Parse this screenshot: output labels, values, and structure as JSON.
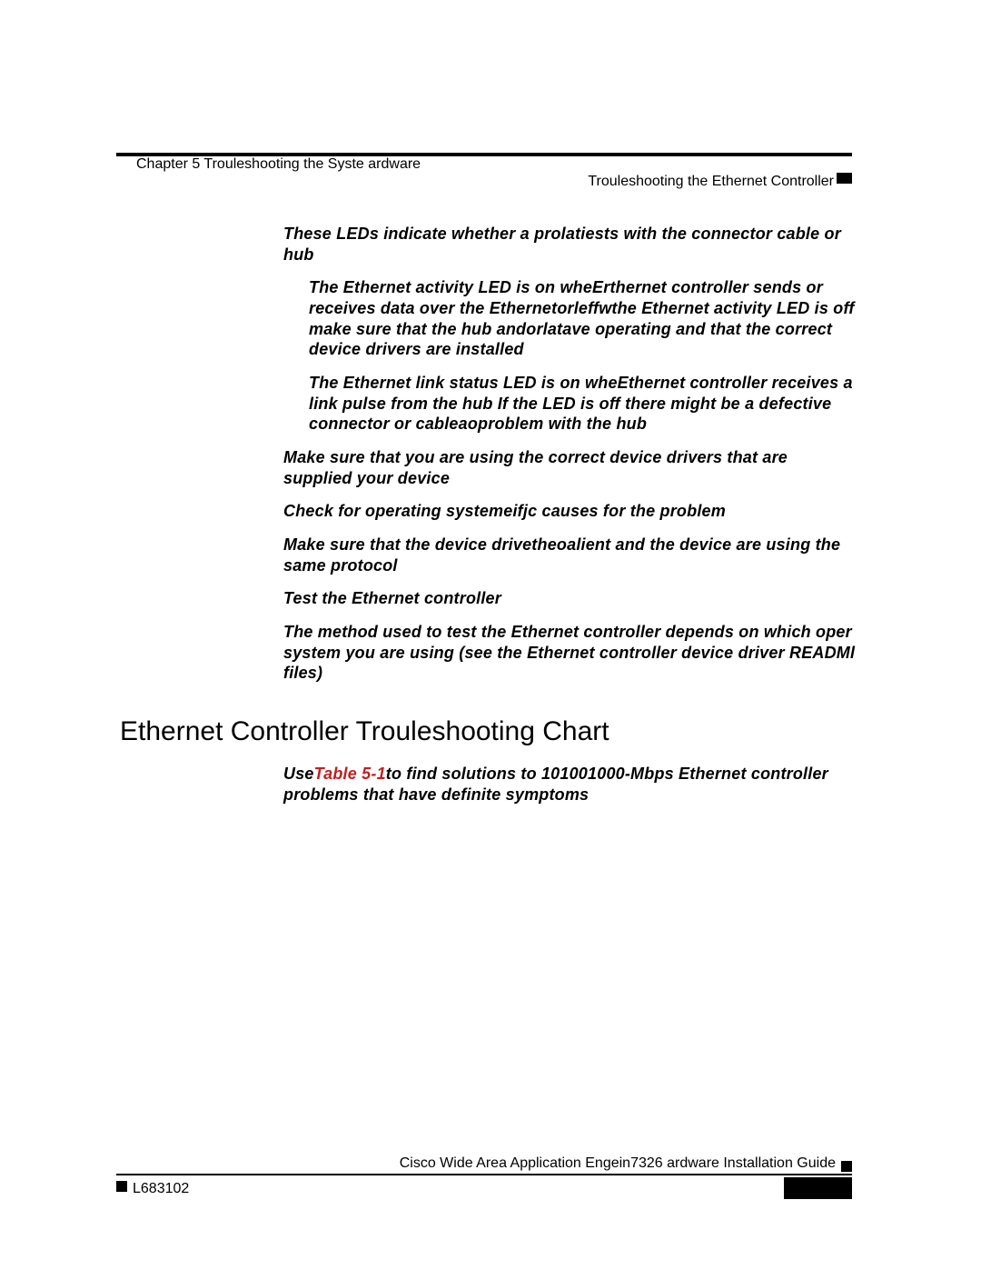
{
  "header": {
    "chapter": "Chapter 5      Trouleshooting the Syste ardware",
    "right": "Trouleshooting the Ethernet Controller"
  },
  "content": {
    "p1": "These LEDs indicate whether a prolatiests with the connector cable or hub",
    "p2": "The Ethernet activity LED is on wheErthernet controller sends or receives data over the Ethernetorleffwthe Ethernet activity LED is off make sure that the hub andorlatave operating and that the correct device drivers are installed",
    "p3": "The Ethernet link status LED is on wheEthernet controller receives a link pulse from the hub If the LED is off there might be a defective connector or cableaoproblem with the hub",
    "p4": "Make sure that you are using the correct device drivers that are supplied your device",
    "p5": "Check for operating systemeifjc causes for the problem",
    "p6": "Make sure that the device drivetheoalient and the device are using the same protocol",
    "p7": "Test the Ethernet controller",
    "p8": "The method used to test the Ethernet controller depends on which oper system you are using (see the Ethernet controller device driver READMl files)",
    "heading": "Ethernet Controller Trouleshooting Chart",
    "p9a": "Use",
    "p9link": "Table 5-1",
    "p9b": "to find solutions to 101001000-Mbps Ethernet controller problems that have definite symptoms"
  },
  "footer": {
    "title": "Cisco Wide Area Application Engein7326 ardware Installation Guide",
    "left": "L683102"
  }
}
